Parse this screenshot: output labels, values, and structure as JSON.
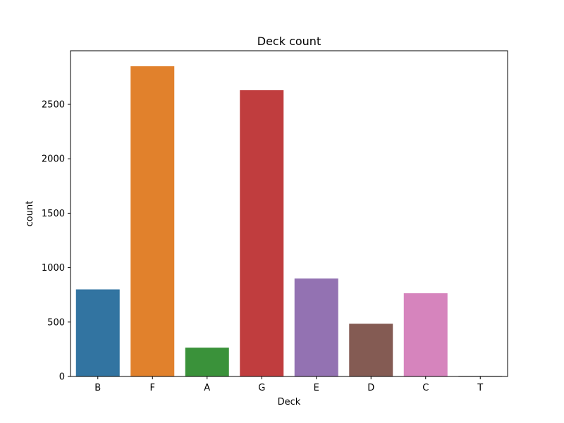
{
  "chart_data": {
    "type": "bar",
    "title": "Deck count",
    "xlabel": "Deck",
    "ylabel": "count",
    "categories": [
      "B",
      "F",
      "A",
      "G",
      "E",
      "D",
      "C",
      "T"
    ],
    "values": [
      800,
      2850,
      265,
      2630,
      900,
      485,
      765,
      5
    ],
    "colors": [
      "#3274a1",
      "#e1812c",
      "#3a923a",
      "#c03d3e",
      "#9372b2",
      "#845b53",
      "#d684bd",
      "#7f7f7f"
    ],
    "ylim": [
      0,
      2992.5
    ],
    "yticks": [
      0,
      500,
      1000,
      1500,
      2000,
      2500
    ],
    "grid": false,
    "legend": "none"
  }
}
